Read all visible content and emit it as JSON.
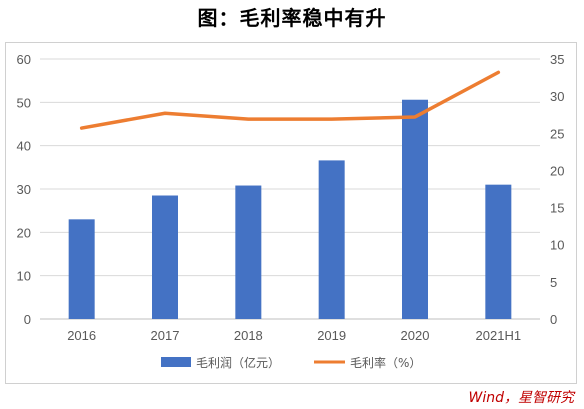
{
  "title": "图：毛利率稳中有升",
  "source": "Wind，星智研究",
  "colors": {
    "bar": "#4472c4",
    "line": "#ed7d31",
    "grid": "#d9d9d9",
    "axis_text": "#595959"
  },
  "chart_data": {
    "type": "bar",
    "categories": [
      "2016",
      "2017",
      "2018",
      "2019",
      "2020",
      "2021H1"
    ],
    "series": [
      {
        "name": "毛利润（亿元）",
        "type": "bar",
        "axis": "left",
        "values": [
          23.0,
          28.5,
          30.8,
          36.6,
          50.6,
          31.0
        ]
      },
      {
        "name": "毛利率（%）",
        "type": "line",
        "axis": "right",
        "values": [
          25.7,
          27.7,
          26.9,
          26.9,
          27.2,
          33.2
        ]
      }
    ],
    "y_left": {
      "ylim": [
        0,
        60
      ],
      "ticks": [
        "0",
        "10",
        "20",
        "30",
        "40",
        "50",
        "60"
      ]
    },
    "y_right": {
      "ylim": [
        0,
        35
      ],
      "ticks": [
        "0",
        "5",
        "10",
        "15",
        "20",
        "25",
        "30",
        "35"
      ]
    },
    "grid": true,
    "legend_position": "bottom"
  }
}
